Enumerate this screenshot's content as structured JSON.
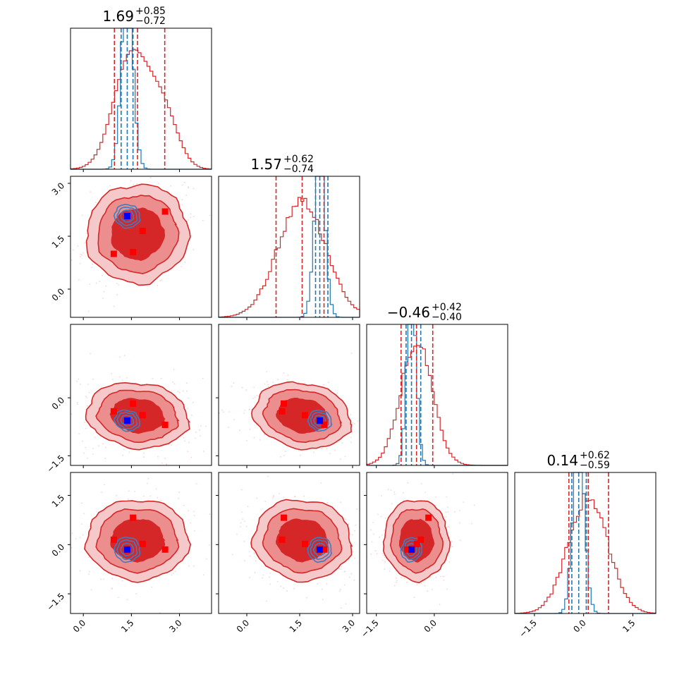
{
  "chart_data": {
    "type": "corner",
    "n_params": 4,
    "colors": {
      "posterior_a": "#d62728",
      "posterior_b": "#1f77b4",
      "truth_a": "#ff0000",
      "truth_b": "#0000ff"
    },
    "titles": [
      {
        "value": "1.69",
        "plus": "+0.85",
        "minus": "−0.72"
      },
      {
        "value": "1.57",
        "plus": "+0.62",
        "minus": "−0.74"
      },
      {
        "value": "−0.46",
        "plus": "+0.42",
        "minus": "−0.40"
      },
      {
        "value": "0.14",
        "plus": "+0.62",
        "minus": "−0.59"
      }
    ],
    "ranges": [
      [
        -0.4,
        4.0
      ],
      [
        -0.8,
        3.2
      ],
      [
        -1.75,
        1.9
      ],
      [
        -2.1,
        2.2
      ]
    ],
    "ticks": [
      {
        "values": [
          0.0,
          1.5,
          3.0
        ],
        "labels": [
          "0.0",
          "1.5",
          "3.0"
        ]
      },
      {
        "values": [
          0.0,
          1.5,
          3.0
        ],
        "labels": [
          "0.0",
          "1.5",
          "3.0"
        ]
      },
      {
        "values": [
          -1.5,
          0.0
        ],
        "labels": [
          "−1.5",
          "0.0"
        ]
      },
      {
        "values": [
          -1.5,
          0.0,
          1.5
        ],
        "labels": [
          "−1.5",
          "0.0",
          "1.5"
        ]
      }
    ],
    "quantiles_red": [
      [
        0.97,
        1.69,
        2.54
      ],
      [
        0.83,
        1.57,
        2.19
      ],
      [
        -0.86,
        -0.46,
        -0.04
      ],
      [
        -0.45,
        0.14,
        0.76
      ]
    ],
    "quantiles_blue": [
      [
        1.18,
        1.37,
        1.55
      ],
      [
        1.95,
        2.07,
        2.3
      ],
      [
        -0.73,
        -0.59,
        -0.35
      ],
      [
        -0.36,
        -0.15,
        0.08
      ]
    ],
    "posterior_a": {
      "means": [
        1.69,
        1.57,
        -0.46,
        0.14
      ],
      "sds": [
        0.78,
        0.68,
        0.41,
        0.6
      ],
      "cov_12": 0.2,
      "cov_13": -0.1,
      "cov_23": -0.15
    },
    "posterior_b": {
      "means": [
        1.37,
        2.07,
        -0.59,
        -0.15
      ],
      "sds": [
        0.18,
        0.15,
        0.12,
        0.17
      ]
    },
    "truth_points_red": [
      [
        0.95,
        1.0,
        -0.35,
        0.15
      ],
      [
        1.55,
        1.05,
        -0.15,
        0.82
      ],
      [
        1.85,
        1.65,
        -0.45,
        0.02
      ],
      [
        2.55,
        2.2,
        -0.7,
        -0.15
      ]
    ],
    "truth_point_blue": [
      1.37,
      2.07,
      -0.59,
      -0.15
    ]
  }
}
